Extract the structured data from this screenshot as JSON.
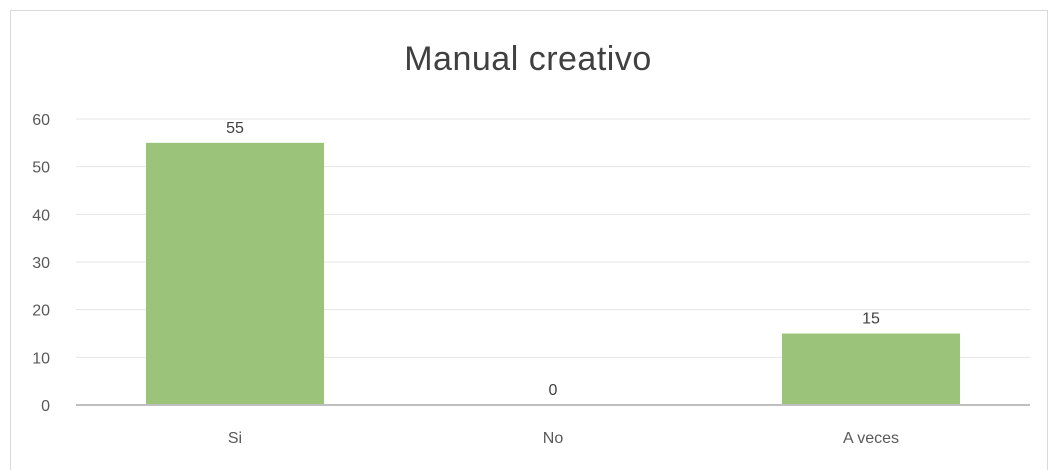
{
  "chart_data": {
    "type": "bar",
    "title": "Manual creativo",
    "categories": [
      "Si",
      "No",
      "A veces"
    ],
    "values": [
      55,
      0,
      15
    ],
    "data_labels": [
      "55",
      "0",
      "15"
    ],
    "y_ticks": [
      0,
      10,
      20,
      30,
      40,
      50,
      60
    ],
    "ylim": [
      0,
      60
    ],
    "grid": true,
    "legend": "none",
    "bar_color": "#9bc47a",
    "grid_color": "#e6e6e6",
    "axis_color": "#bfbfbf"
  }
}
